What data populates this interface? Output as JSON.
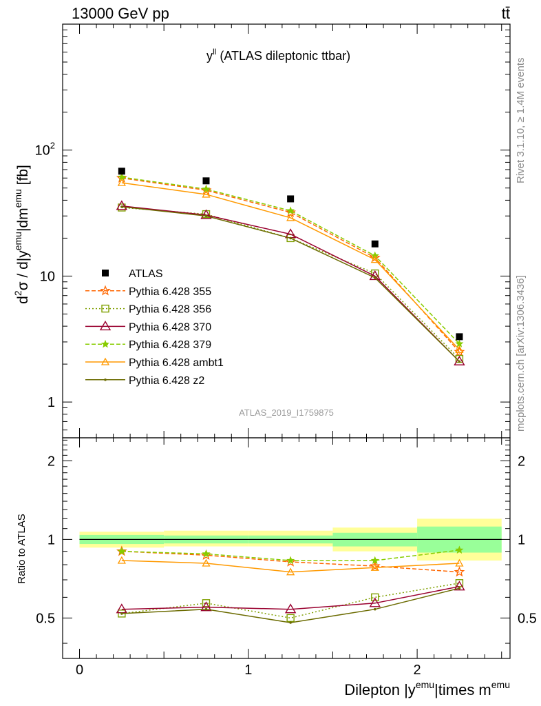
{
  "header": {
    "left": "13000 GeV pp",
    "right": "tt̄"
  },
  "side_labels": {
    "rivet": "Rivet 3.1.10, ≥ 1.4M events",
    "mcplots": "mcplots.cern.ch [arXiv:1306.3436]"
  },
  "watermark": "ATLAS_2019_I1759875",
  "plot_title": {
    "main": "y",
    "sup": "ll",
    "rest": " (ATLAS dileptonic ttbar)"
  },
  "axes": {
    "main_ylabel": {
      "a": "d",
      "a_sup": "2",
      "b": "σ / d|y",
      "b_sup": "emu",
      "c": "|dm",
      "c_sup": "emu",
      "d": " [fb]"
    },
    "ratio_ylabel": "Ratio to ATLAS",
    "xlabel": {
      "a": "Dilepton |y",
      "a_sup": "emu",
      "b": "|times m",
      "b_sup": "emu"
    },
    "main_ticklabels": [
      {
        "v": 100,
        "base": "10",
        "sup": "2"
      },
      {
        "v": 10,
        "base": "10",
        "sup": ""
      },
      {
        "v": 1,
        "base": "1",
        "sup": ""
      }
    ],
    "ratio_ticklabels": [
      {
        "v": 2,
        "label": "2"
      },
      {
        "v": 1,
        "label": "1"
      },
      {
        "v": 0.5,
        "label": "0.5"
      }
    ],
    "x_ticklabels": [
      {
        "v": 0,
        "label": "0"
      },
      {
        "v": 1,
        "label": "1"
      },
      {
        "v": 2,
        "label": "2"
      }
    ]
  },
  "chart_data": {
    "type": "scatter",
    "xlim": [
      -0.1,
      2.55
    ],
    "main_ylim": [
      0.52,
      1000
    ],
    "main_yscale": "log",
    "ratio_ylim": [
      0.35,
      2.45
    ],
    "ratio_yscale": "log",
    "x": [
      0.25,
      0.75,
      1.25,
      1.75,
      2.25
    ],
    "bin_edges": [
      0,
      0.5,
      1,
      1.5,
      2,
      2.5
    ],
    "reference": {
      "name": "ATLAS",
      "values": [
        68,
        57,
        41,
        18,
        3.3
      ]
    },
    "band_inner": [
      [
        0.96,
        1.04
      ],
      [
        0.965,
        1.035
      ],
      [
        0.965,
        1.035
      ],
      [
        0.94,
        1.06
      ],
      [
        0.89,
        1.12
      ]
    ],
    "band_outer": [
      [
        0.93,
        1.07
      ],
      [
        0.94,
        1.08
      ],
      [
        0.94,
        1.08
      ],
      [
        0.9,
        1.11
      ],
      [
        0.83,
        1.2
      ]
    ],
    "series": [
      {
        "name": "Pythia 6.428 355",
        "color": "#ff6600",
        "dash": "6,3",
        "marker": "star-open",
        "values": [
          60,
          48,
          32,
          14,
          2.5
        ],
        "ratio": [
          0.9,
          0.87,
          0.82,
          0.79,
          0.75
        ]
      },
      {
        "name": "Pythia 6.428 356",
        "color": "#7f9f00",
        "dash": "2,3",
        "marker": "square-open",
        "values": [
          35,
          31,
          20,
          10.5,
          2.2
        ],
        "ratio": [
          0.52,
          0.57,
          0.5,
          0.6,
          0.68
        ]
      },
      {
        "name": "Pythia 6.428 370",
        "color": "#99002f",
        "dash": "",
        "marker": "triangle-open",
        "values": [
          36,
          30.5,
          21.5,
          10,
          2.1
        ],
        "ratio": [
          0.54,
          0.55,
          0.54,
          0.57,
          0.66
        ]
      },
      {
        "name": "Pythia 6.428 379",
        "color": "#88cc00",
        "dash": "6,3",
        "marker": "star-filled",
        "values": [
          61,
          49,
          33,
          14.5,
          2.9
        ],
        "ratio": [
          0.9,
          0.88,
          0.83,
          0.83,
          0.91
        ]
      },
      {
        "name": "Pythia 6.428 ambt1",
        "color": "#ff9900",
        "dash": "",
        "marker": "triangle-small",
        "values": [
          55,
          44.5,
          29,
          13.5,
          2.6
        ],
        "ratio": [
          0.83,
          0.81,
          0.75,
          0.78,
          0.81
        ]
      },
      {
        "name": "Pythia 6.428 z2",
        "color": "#6b6b00",
        "dash": "",
        "marker": "dot",
        "values": [
          35.5,
          30,
          20,
          9.7,
          2.1
        ],
        "ratio": [
          0.52,
          0.54,
          0.48,
          0.54,
          0.65
        ]
      }
    ]
  }
}
